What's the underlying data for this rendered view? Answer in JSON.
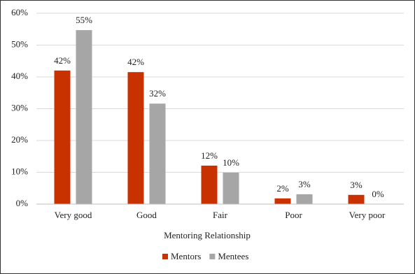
{
  "chart_data": {
    "type": "bar",
    "x_label": "Mentoring Relationship",
    "categories": [
      "Very good",
      "Good",
      "Fair",
      "Poor",
      "Very poor"
    ],
    "series": [
      {
        "name": "Mentors",
        "color": "#c83200",
        "values": [
          42.0,
          41.5,
          12.1,
          1.8,
          2.9
        ],
        "value_labels": [
          "42%",
          "42%",
          "12%",
          "2%",
          "3%"
        ]
      },
      {
        "name": "Mentees",
        "color": "#a6a6a6",
        "values": [
          54.7,
          31.6,
          9.9,
          3.1,
          0
        ],
        "value_labels": [
          "55%",
          "32%",
          "10%",
          "3%",
          "0%"
        ]
      }
    ],
    "ylim": [
      0,
      60
    ],
    "yticks": [
      {
        "value": 0,
        "label": "0%"
      },
      {
        "value": 10,
        "label": "10%"
      },
      {
        "value": 20,
        "label": "20%"
      },
      {
        "value": 30,
        "label": "30%"
      },
      {
        "value": 40,
        "label": "40%"
      },
      {
        "value": 50,
        "label": "50%"
      },
      {
        "value": 60,
        "label": "60%"
      }
    ],
    "grid": true,
    "legend": "bottom"
  }
}
